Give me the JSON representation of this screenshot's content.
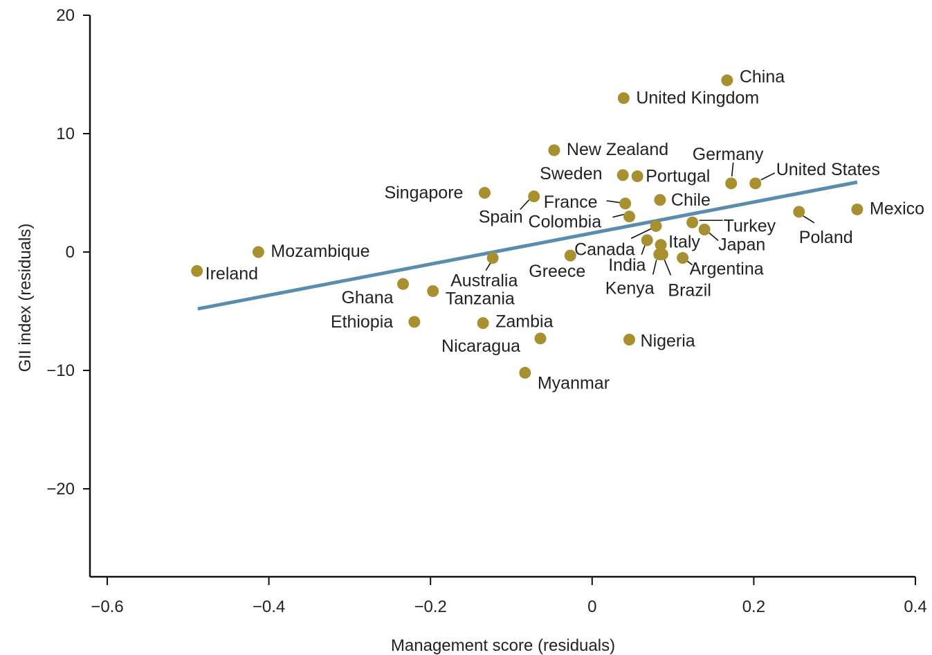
{
  "chart_data": {
    "type": "scatter",
    "title": "",
    "xlabel": "Management score (residuals)",
    "ylabel": "GII index (residuals)",
    "xlim": [
      -0.62,
      0.4
    ],
    "ylim": [
      -27.5,
      20
    ],
    "xticks": [
      -0.6,
      -0.4,
      -0.2,
      0,
      0.2,
      0.4
    ],
    "xtick_labels": [
      "−0.6",
      "−0.4",
      "−0.2",
      "0",
      "0.2",
      "0.4"
    ],
    "yticks": [
      20,
      10,
      0,
      -10,
      -20
    ],
    "ytick_labels": [
      "20",
      "10",
      "0",
      "−10",
      "−20"
    ],
    "grid": false,
    "point_color": "#a89030",
    "line_color": "#5a8cb0",
    "trend_line": {
      "x": [
        -0.488,
        0.328
      ],
      "y": [
        -4.8,
        5.9
      ]
    },
    "points": [
      {
        "name": "China",
        "x": 0.167,
        "y": 14.5
      },
      {
        "name": "United Kingdom",
        "x": 0.039,
        "y": 13.0
      },
      {
        "name": "New Zealand",
        "x": -0.047,
        "y": 8.6
      },
      {
        "name": "Germany",
        "x": 0.172,
        "y": 5.8
      },
      {
        "name": "United States",
        "x": 0.202,
        "y": 5.8
      },
      {
        "name": "Sweden",
        "x": 0.038,
        "y": 6.5
      },
      {
        "name": "Portugal",
        "x": 0.056,
        "y": 6.4
      },
      {
        "name": "Singapore",
        "x": -0.133,
        "y": 5.0
      },
      {
        "name": "Spain",
        "x": -0.072,
        "y": 4.7
      },
      {
        "name": "France",
        "x": 0.041,
        "y": 4.1
      },
      {
        "name": "Chile",
        "x": 0.084,
        "y": 4.4
      },
      {
        "name": "Mexico",
        "x": 0.328,
        "y": 3.6
      },
      {
        "name": "Poland",
        "x": 0.256,
        "y": 3.4
      },
      {
        "name": "Colombia",
        "x": 0.046,
        "y": 3.0
      },
      {
        "name": "Turkey",
        "x": 0.124,
        "y": 2.5
      },
      {
        "name": "Japan",
        "x": 0.139,
        "y": 1.9
      },
      {
        "name": "Canada",
        "x": 0.079,
        "y": 2.2
      },
      {
        "name": "India",
        "x": 0.068,
        "y": 1.0
      },
      {
        "name": "Italy",
        "x": 0.085,
        "y": 0.6
      },
      {
        "name": "Kenya",
        "x": 0.083,
        "y": -0.2
      },
      {
        "name": "Brazil",
        "x": 0.087,
        "y": -0.2
      },
      {
        "name": "Argentina",
        "x": 0.112,
        "y": -0.5
      },
      {
        "name": "Greece",
        "x": -0.027,
        "y": -0.3
      },
      {
        "name": "Mozambique",
        "x": -0.413,
        "y": 0.0
      },
      {
        "name": "Ireland",
        "x": -0.489,
        "y": -1.6
      },
      {
        "name": "Australia",
        "x": -0.123,
        "y": -0.5
      },
      {
        "name": "Ghana",
        "x": -0.234,
        "y": -2.7
      },
      {
        "name": "Tanzania",
        "x": -0.197,
        "y": -3.3
      },
      {
        "name": "Ethiopia",
        "x": -0.22,
        "y": -5.9
      },
      {
        "name": "Zambia",
        "x": -0.135,
        "y": -6.0
      },
      {
        "name": "Nicaragua",
        "x": -0.064,
        "y": -7.3
      },
      {
        "name": "Nigeria",
        "x": 0.046,
        "y": -7.4
      },
      {
        "name": "Myanmar",
        "x": -0.083,
        "y": -10.2
      }
    ]
  }
}
